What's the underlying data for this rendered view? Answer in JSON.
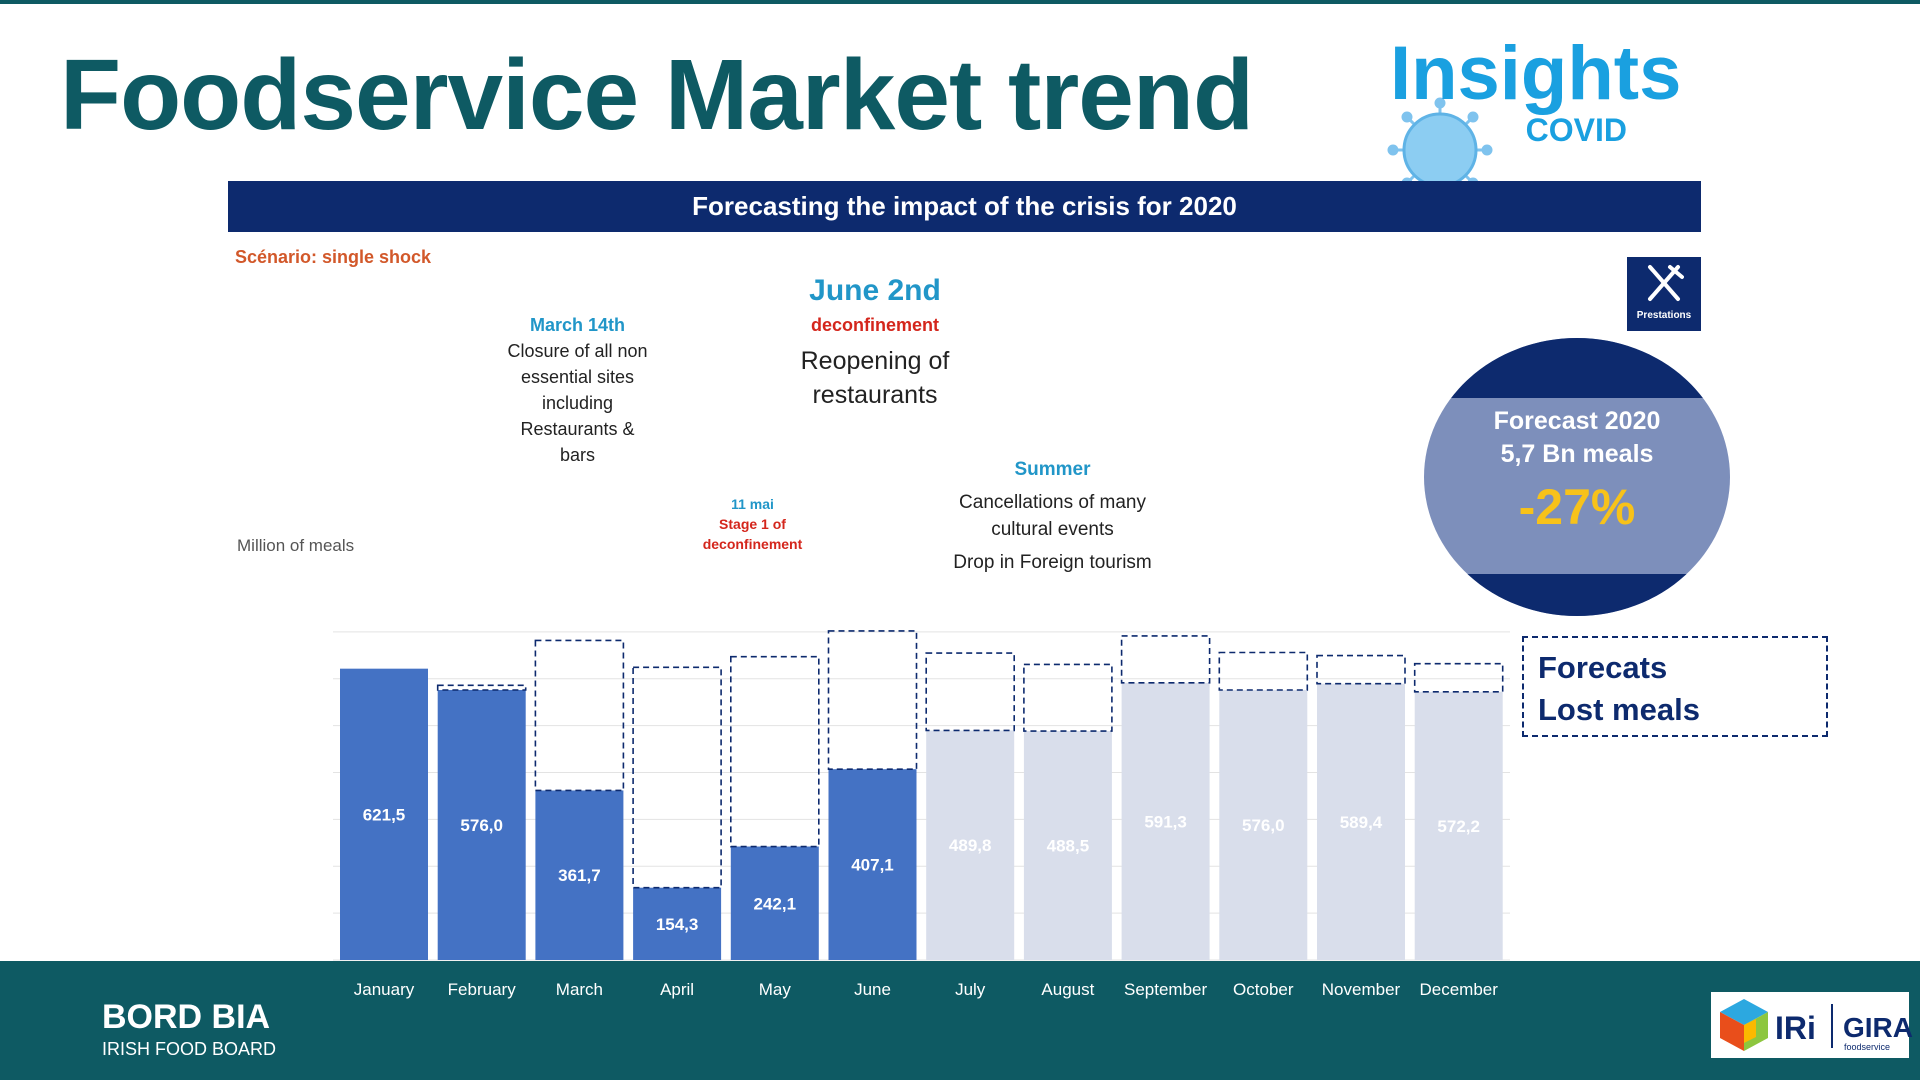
{
  "title": "Foodservice Market trend",
  "logo": {
    "main": "Insights",
    "sub": "COVID"
  },
  "banner": "Forecasting the impact of the crisis for 2020",
  "scenario": "Scénario: single shock",
  "y_axis_label": "Million of meals",
  "annotations": {
    "march": {
      "date": "March 14th",
      "text": "Closure of all non essential sites including Restaurants & bars"
    },
    "may": {
      "date": "11 mai",
      "text": "Stage 1 of deconfinement"
    },
    "june": {
      "date": "June 2nd",
      "sub": "deconfinement",
      "text": "Reopening of restaurants"
    },
    "summer": {
      "title": "Summer",
      "line1": "Cancellations of many cultural events",
      "line2": "Drop in Foreign tourism"
    }
  },
  "prestations": "Prestations",
  "forecast": {
    "line1": "Forecast 2020",
    "line2": "5,7 Bn meals",
    "change": "-27%"
  },
  "legend": {
    "line1": "Forecats",
    "line2": "Lost meals"
  },
  "footer": {
    "brand": "BORD BIA",
    "tagline": "IRISH FOOD BOARD",
    "partner1": "IRi",
    "partner2": "GIRA",
    "partner2_sub": "foodservice"
  },
  "colors": {
    "actual": "#4472c4",
    "forecast": "#d9deeb",
    "lost_border": "#0d2a6e",
    "teal": "#0e5a63",
    "navy": "#0d2a6e"
  },
  "chart_data": {
    "type": "bar",
    "categories": [
      "January",
      "February",
      "March",
      "April",
      "May",
      "June",
      "July",
      "August",
      "September",
      "October",
      "November",
      "December"
    ],
    "series": [
      {
        "values": [
          621.5,
          576.0,
          361.7,
          154.3,
          242.1,
          407.1,
          489.8,
          488.5,
          591.3,
          576.0,
          589.4,
          572.2
        ]
      },
      {
        "name": "Lost meals",
        "values": [
          0,
          10,
          320,
          470,
          405,
          295,
          165,
          142,
          100,
          80,
          60,
          60
        ]
      }
    ],
    "value_labels": [
      "621,5",
      "576,0",
      "361,7",
      "154,3",
      "242,1",
      "407,1",
      "489,8",
      "488,5",
      "591,3",
      "576,0",
      "589,4",
      "572,2"
    ],
    "actual_months": 6,
    "ylim": [
      0,
      800
    ],
    "grid": true
  }
}
